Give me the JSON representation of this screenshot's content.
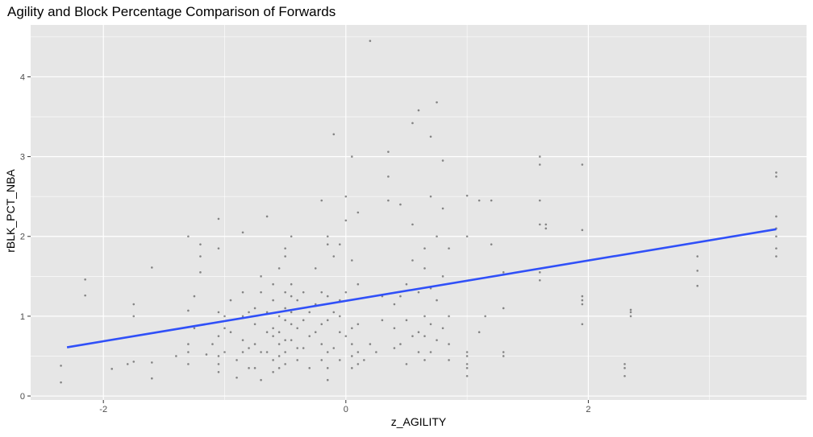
{
  "chart_data": {
    "type": "scatter",
    "title": "Agility and Block Percentage Comparison of Forwards",
    "xlabel": "z_AGILITY",
    "ylabel": "rBLK_PCT_NBA",
    "xlim": [
      -2.6,
      3.8
    ],
    "ylim": [
      -0.05,
      4.65
    ],
    "x_ticks": [
      -2,
      0,
      2
    ],
    "x_tick_labels": [
      "-2",
      "0",
      "2"
    ],
    "y_ticks": [
      0,
      1,
      2,
      3,
      4
    ],
    "y_tick_labels": [
      "0",
      "1",
      "2",
      "3",
      "4"
    ],
    "grid": true,
    "panel_background": "#E6E6E6",
    "grid_color": "#FFFFFF",
    "point_color": "#333333",
    "trend_color": "#3050F8",
    "series": [
      {
        "type": "points",
        "x": [
          -2.35,
          -2.35,
          -2.15,
          -2.15,
          -1.93,
          -1.8,
          -1.75,
          -1.75,
          -1.75,
          -1.6,
          -1.6,
          -1.6,
          -1.4,
          -1.3,
          -1.3,
          -1.3,
          -1.3,
          -1.3,
          -1.25,
          -1.25,
          -1.2,
          -1.2,
          -1.2,
          -1.15,
          -1.1,
          -1.05,
          -1.05,
          -1.05,
          -1.05,
          -1.05,
          -1.05,
          -1.05,
          -1.0,
          -1.0,
          -1.0,
          -0.95,
          -0.95,
          -0.9,
          -0.9,
          -0.85,
          -0.85,
          -0.85,
          -0.85,
          -0.85,
          -0.8,
          -0.8,
          -0.8,
          -0.75,
          -0.75,
          -0.75,
          -0.75,
          -0.7,
          -0.7,
          -0.7,
          -0.7,
          -0.65,
          -0.65,
          -0.65,
          -0.65,
          -0.6,
          -0.6,
          -0.6,
          -0.6,
          -0.6,
          -0.6,
          -0.55,
          -0.55,
          -0.55,
          -0.55,
          -0.55,
          -0.55,
          -0.5,
          -0.5,
          -0.5,
          -0.5,
          -0.5,
          -0.5,
          -0.5,
          -0.5,
          -0.45,
          -0.45,
          -0.45,
          -0.45,
          -0.45,
          -0.45,
          -0.4,
          -0.4,
          -0.4,
          -0.4,
          -0.35,
          -0.35,
          -0.35,
          -0.3,
          -0.3,
          -0.3,
          -0.25,
          -0.25,
          -0.25,
          -0.2,
          -0.2,
          -0.2,
          -0.2,
          -0.2,
          -0.15,
          -0.15,
          -0.15,
          -0.15,
          -0.15,
          -0.15,
          -0.15,
          -0.1,
          -0.1,
          -0.1,
          -0.1,
          -0.05,
          -0.05,
          -0.05,
          -0.05,
          -0.05,
          0.0,
          0.0,
          0.0,
          0.0,
          0.05,
          0.05,
          0.05,
          0.05,
          0.05,
          0.05,
          0.1,
          0.1,
          0.1,
          0.1,
          0.1,
          0.15,
          0.2,
          0.2,
          0.25,
          0.3,
          0.3,
          0.35,
          0.35,
          0.35,
          0.4,
          0.4,
          0.4,
          0.45,
          0.45,
          0.45,
          0.5,
          0.5,
          0.5,
          0.55,
          0.55,
          0.55,
          0.55,
          0.6,
          0.6,
          0.6,
          0.6,
          0.65,
          0.65,
          0.65,
          0.65,
          0.65,
          0.7,
          0.7,
          0.7,
          0.7,
          0.7,
          0.75,
          0.75,
          0.75,
          0.75,
          0.8,
          0.8,
          0.8,
          0.8,
          0.85,
          0.85,
          0.85,
          0.85,
          1.0,
          1.0,
          1.0,
          1.0,
          1.0,
          1.0,
          1.0,
          1.1,
          1.1,
          1.15,
          1.2,
          1.2,
          1.3,
          1.3,
          1.3,
          1.3,
          1.6,
          1.6,
          1.6,
          1.6,
          1.6,
          1.6,
          1.65,
          1.65,
          1.95,
          1.95,
          1.95,
          1.95,
          1.95,
          1.95,
          2.3,
          2.3,
          2.3,
          2.35,
          2.35,
          2.35,
          2.9,
          2.9,
          2.9,
          3.55,
          3.55,
          3.55,
          3.55,
          3.55,
          3.55,
          3.55
        ],
        "y": [
          0.17,
          0.38,
          1.26,
          1.46,
          0.34,
          0.4,
          0.43,
          1.0,
          1.15,
          0.22,
          0.42,
          1.61,
          0.5,
          0.4,
          0.55,
          0.65,
          1.07,
          2.0,
          0.85,
          1.25,
          1.55,
          1.75,
          1.9,
          0.52,
          0.65,
          0.3,
          0.4,
          0.5,
          0.75,
          1.05,
          1.85,
          2.22,
          0.55,
          0.85,
          1.0,
          0.8,
          1.2,
          0.23,
          0.45,
          0.55,
          0.7,
          1.0,
          1.3,
          2.05,
          0.35,
          0.6,
          1.05,
          0.35,
          0.65,
          0.9,
          1.1,
          0.2,
          0.55,
          1.3,
          1.5,
          0.55,
          0.8,
          1.05,
          2.25,
          0.3,
          0.45,
          0.75,
          0.85,
          1.2,
          1.4,
          0.35,
          0.5,
          0.65,
          0.8,
          1.0,
          1.6,
          0.4,
          0.55,
          0.7,
          0.95,
          1.1,
          1.3,
          1.75,
          1.85,
          0.7,
          0.9,
          1.05,
          1.25,
          1.4,
          2.0,
          0.45,
          0.6,
          0.85,
          1.2,
          0.6,
          0.95,
          1.3,
          0.35,
          0.75,
          1.05,
          0.8,
          1.15,
          1.6,
          0.45,
          0.65,
          0.9,
          1.3,
          2.45,
          0.2,
          0.35,
          0.55,
          0.95,
          1.25,
          1.9,
          2.0,
          0.6,
          1.05,
          1.75,
          3.28,
          0.45,
          0.8,
          1.0,
          1.2,
          1.9,
          0.75,
          1.3,
          2.2,
          2.5,
          0.35,
          0.5,
          0.65,
          0.85,
          1.7,
          3.0,
          0.4,
          0.55,
          0.9,
          1.4,
          2.3,
          0.45,
          0.65,
          4.45,
          0.55,
          0.95,
          1.25,
          2.45,
          2.75,
          3.06,
          0.6,
          0.85,
          1.15,
          0.65,
          1.25,
          2.4,
          0.4,
          0.95,
          1.4,
          0.75,
          1.7,
          2.15,
          3.42,
          0.55,
          0.8,
          1.3,
          3.58,
          0.45,
          0.75,
          1.0,
          1.6,
          1.85,
          0.55,
          0.9,
          1.35,
          2.5,
          3.25,
          0.7,
          1.2,
          2.0,
          3.68,
          0.85,
          1.5,
          2.35,
          2.95,
          0.45,
          0.65,
          1.0,
          1.85,
          0.25,
          0.35,
          0.4,
          0.5,
          0.55,
          2.0,
          2.51,
          0.8,
          2.45,
          1.0,
          1.9,
          2.45,
          0.5,
          0.55,
          1.1,
          1.55,
          1.45,
          1.55,
          2.15,
          2.45,
          2.9,
          3.0,
          2.1,
          2.15,
          0.9,
          1.15,
          1.2,
          1.25,
          2.08,
          2.9,
          0.25,
          0.35,
          0.4,
          1.0,
          1.05,
          1.08,
          1.38,
          1.57,
          1.75,
          1.75,
          1.85,
          2.0,
          2.1,
          2.25,
          2.75,
          2.8
        ]
      },
      {
        "type": "trend",
        "x": [
          -2.3,
          3.55
        ],
        "y": [
          0.61,
          2.09
        ]
      }
    ]
  }
}
